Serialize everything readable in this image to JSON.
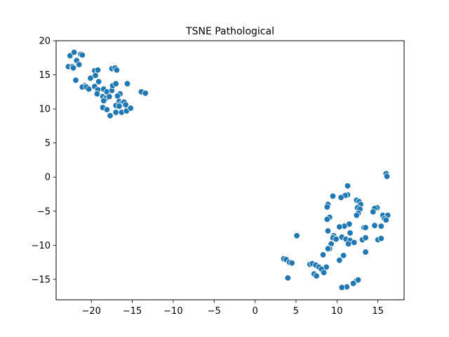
{
  "chart_data": {
    "type": "scatter",
    "title": "TSNE Pathological",
    "xlabel": "",
    "ylabel": "",
    "xlim": [
      -24.3,
      18.2
    ],
    "ylim": [
      -18.0,
      20.0
    ],
    "xticks": [
      -20,
      -15,
      -10,
      -5,
      0,
      5,
      10,
      15
    ],
    "yticks": [
      -15,
      -10,
      -5,
      0,
      5,
      10,
      15,
      20
    ],
    "xtick_labels": [
      "−20",
      "−15",
      "−10",
      "−5",
      "0",
      "5",
      "10",
      "15"
    ],
    "ytick_labels": [
      "−15",
      "−10",
      "−5",
      "0",
      "5",
      "10",
      "15",
      "20"
    ],
    "grid": false,
    "legend": false,
    "marker_color": "#1f77b4",
    "marker_edge_color": "#ffffff",
    "series": [
      {
        "points": [
          [
            -22.6,
            17.8
          ],
          [
            -22.1,
            18.3
          ],
          [
            -21.8,
            17.1
          ],
          [
            -21.3,
            18.0
          ],
          [
            -21.1,
            17.9
          ],
          [
            -22.8,
            16.2
          ],
          [
            -22.3,
            16.2
          ],
          [
            -22.2,
            16.0
          ],
          [
            -21.5,
            16.5
          ],
          [
            -19.6,
            15.6
          ],
          [
            -19.2,
            15.7
          ],
          [
            -19.5,
            14.9
          ],
          [
            -20.1,
            14.5
          ],
          [
            -19.1,
            14.0
          ],
          [
            -21.9,
            14.2
          ],
          [
            -20.8,
            13.4
          ],
          [
            -21.1,
            13.2
          ],
          [
            -20.6,
            13.2
          ],
          [
            -20.3,
            12.9
          ],
          [
            -19.6,
            13.3
          ],
          [
            -19.2,
            12.8
          ],
          [
            -19.3,
            12.2
          ],
          [
            -18.5,
            12.9
          ],
          [
            -18.1,
            12.5
          ],
          [
            -17.5,
            12.7
          ],
          [
            -17.4,
            13.4
          ],
          [
            -17.0,
            13.7
          ],
          [
            -16.5,
            12.2
          ],
          [
            -16.8,
            11.9
          ],
          [
            -15.6,
            13.7
          ],
          [
            -13.9,
            12.5
          ],
          [
            -13.4,
            12.3
          ],
          [
            -17.5,
            15.9
          ],
          [
            -17.1,
            16.0
          ],
          [
            -16.9,
            15.7
          ],
          [
            -18.6,
            11.8
          ],
          [
            -18.2,
            11.6
          ],
          [
            -17.8,
            11.8
          ],
          [
            -18.5,
            11.2
          ],
          [
            -16.6,
            11.1
          ],
          [
            -16.3,
            10.8
          ],
          [
            -16.0,
            11.0
          ],
          [
            -15.8,
            10.6
          ],
          [
            -17.0,
            10.5
          ],
          [
            -16.6,
            10.4
          ],
          [
            -18.6,
            10.2
          ],
          [
            -18.1,
            9.9
          ],
          [
            -17.7,
            9.0
          ],
          [
            -17.0,
            9.5
          ],
          [
            -16.3,
            9.5
          ],
          [
            -15.7,
            9.7
          ],
          [
            -15.2,
            10.1
          ],
          [
            16.0,
            0.5
          ],
          [
            16.1,
            0.1
          ],
          [
            11.3,
            -1.3
          ],
          [
            11.3,
            -2.6
          ],
          [
            11.0,
            -2.7
          ],
          [
            9.5,
            -2.8
          ],
          [
            10.5,
            -3.0
          ],
          [
            12.4,
            -3.4
          ],
          [
            12.7,
            -3.6
          ],
          [
            12.9,
            -4.0
          ],
          [
            8.9,
            -4.0
          ],
          [
            8.8,
            -4.4
          ],
          [
            12.5,
            -4.5
          ],
          [
            12.8,
            -4.7
          ],
          [
            14.9,
            -4.5
          ],
          [
            14.6,
            -4.6
          ],
          [
            14.4,
            -5.1
          ],
          [
            15.6,
            -5.6
          ],
          [
            16.2,
            -5.6
          ],
          [
            12.6,
            -5.3
          ],
          [
            12.4,
            -5.6
          ],
          [
            9.1,
            -5.9
          ],
          [
            8.8,
            -6.2
          ],
          [
            15.8,
            -6.1
          ],
          [
            16.0,
            -6.3
          ],
          [
            11.5,
            -6.9
          ],
          [
            10.9,
            -7.2
          ],
          [
            10.3,
            -7.3
          ],
          [
            13.3,
            -7.4
          ],
          [
            13.5,
            -7.4
          ],
          [
            14.6,
            -7.1
          ],
          [
            15.4,
            -7.2
          ],
          [
            8.9,
            -7.9
          ],
          [
            11.6,
            -8.2
          ],
          [
            9.6,
            -8.6
          ],
          [
            9.5,
            -8.9
          ],
          [
            10.6,
            -8.8
          ],
          [
            9.9,
            -9.1
          ],
          [
            11.1,
            -9.1
          ],
          [
            11.6,
            -9.3
          ],
          [
            12.1,
            -9.6
          ],
          [
            13.1,
            -9.2
          ],
          [
            13.5,
            -8.9
          ],
          [
            15.0,
            -9.2
          ],
          [
            15.4,
            -9.0
          ],
          [
            5.1,
            -8.6
          ],
          [
            9.3,
            -9.8
          ],
          [
            11.4,
            -9.8
          ],
          [
            9.1,
            -10.5
          ],
          [
            8.9,
            -10.5
          ],
          [
            13.5,
            -11.0
          ],
          [
            10.8,
            -11.5
          ],
          [
            8.3,
            -11.4
          ],
          [
            10.3,
            -12.2
          ],
          [
            3.5,
            -12.0
          ],
          [
            3.8,
            -12.1
          ],
          [
            4.2,
            -12.5
          ],
          [
            4.5,
            -12.6
          ],
          [
            6.7,
            -12.8
          ],
          [
            7.0,
            -12.7
          ],
          [
            7.4,
            -12.9
          ],
          [
            7.8,
            -13.2
          ],
          [
            8.7,
            -13.2
          ],
          [
            8.1,
            -13.5
          ],
          [
            8.4,
            -14.0
          ],
          [
            7.2,
            -14.2
          ],
          [
            7.5,
            -14.5
          ],
          [
            4.0,
            -14.8
          ],
          [
            12.4,
            -15.2
          ],
          [
            12.6,
            -15.1
          ],
          [
            12.0,
            -15.6
          ],
          [
            11.2,
            -16.1
          ],
          [
            10.6,
            -16.2
          ]
        ]
      }
    ]
  }
}
